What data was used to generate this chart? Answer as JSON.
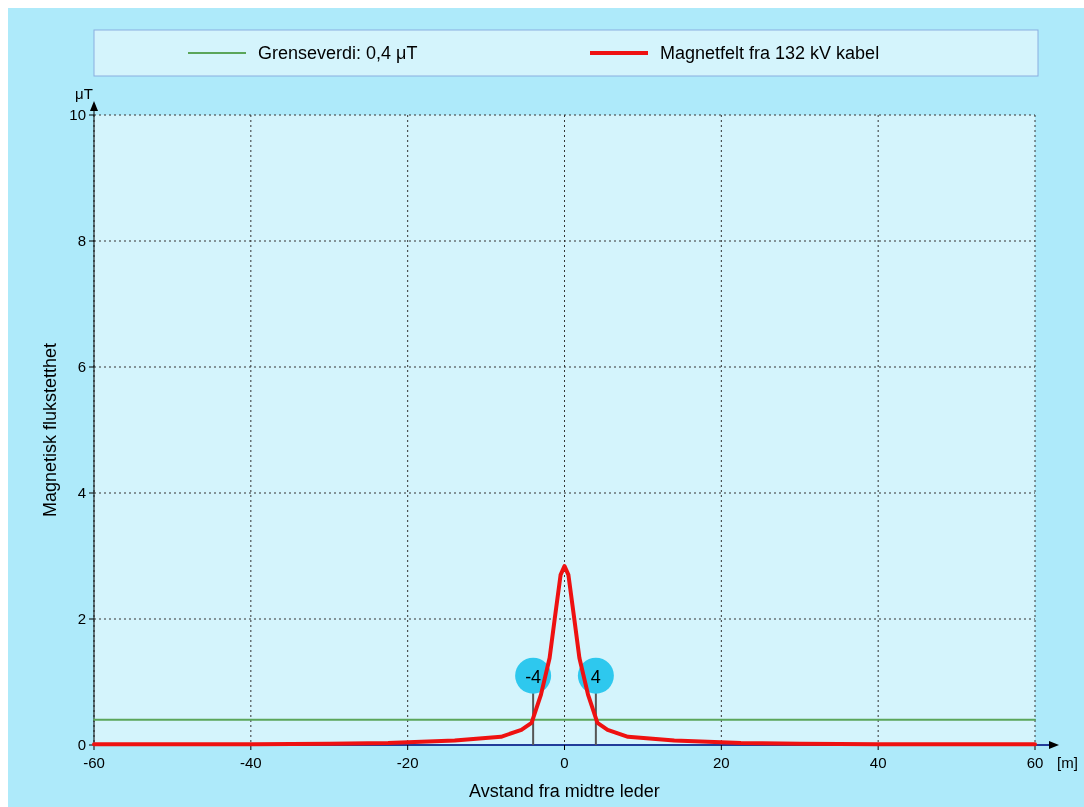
{
  "chart_data": {
    "type": "line",
    "xlabel": "Avstand fra midtre leder",
    "ylabel": "Magnetisk flukstetthet",
    "xlim": [
      -60,
      60
    ],
    "xticks": [
      -60,
      -40,
      -20,
      0,
      20,
      40,
      60
    ],
    "ylim": [
      0,
      10
    ],
    "yticks": [
      0,
      2,
      4,
      6,
      8,
      10
    ],
    "grid": true,
    "legend": "top",
    "line_style": "solid",
    "marker": "none",
    "annotations": [
      "μT",
      "[m]",
      {
        "text": "-4",
        "x": -4,
        "y": 1.1
      },
      {
        "text": "4",
        "x": 4,
        "y": 1.1
      }
    ],
    "series": [
      {
        "name": "Grenseverdi: 0,4 μT",
        "color": "#5aa55a",
        "x": [
          -60,
          60
        ],
        "values": [
          0.4,
          0.4
        ]
      },
      {
        "name": "Magnetfelt fra 132 kV kabel",
        "color": "#ee1111",
        "x": [
          -60,
          -40,
          -30,
          -22.5,
          -14,
          -8.1,
          -5.5,
          -4.2,
          -3,
          -1.9,
          -1.25,
          -0.5,
          0,
          0.5,
          1.25,
          1.9,
          3,
          4.2,
          5.5,
          8.1,
          14,
          22.5,
          30,
          40,
          60
        ],
        "values": [
          0.01,
          0.01,
          0.02,
          0.03,
          0.07,
          0.13,
          0.24,
          0.35,
          0.8,
          1.38,
          2.0,
          2.7,
          2.84,
          2.7,
          2.0,
          1.38,
          0.8,
          0.35,
          0.24,
          0.13,
          0.07,
          0.03,
          0.02,
          0.01,
          0.01
        ]
      }
    ]
  }
}
